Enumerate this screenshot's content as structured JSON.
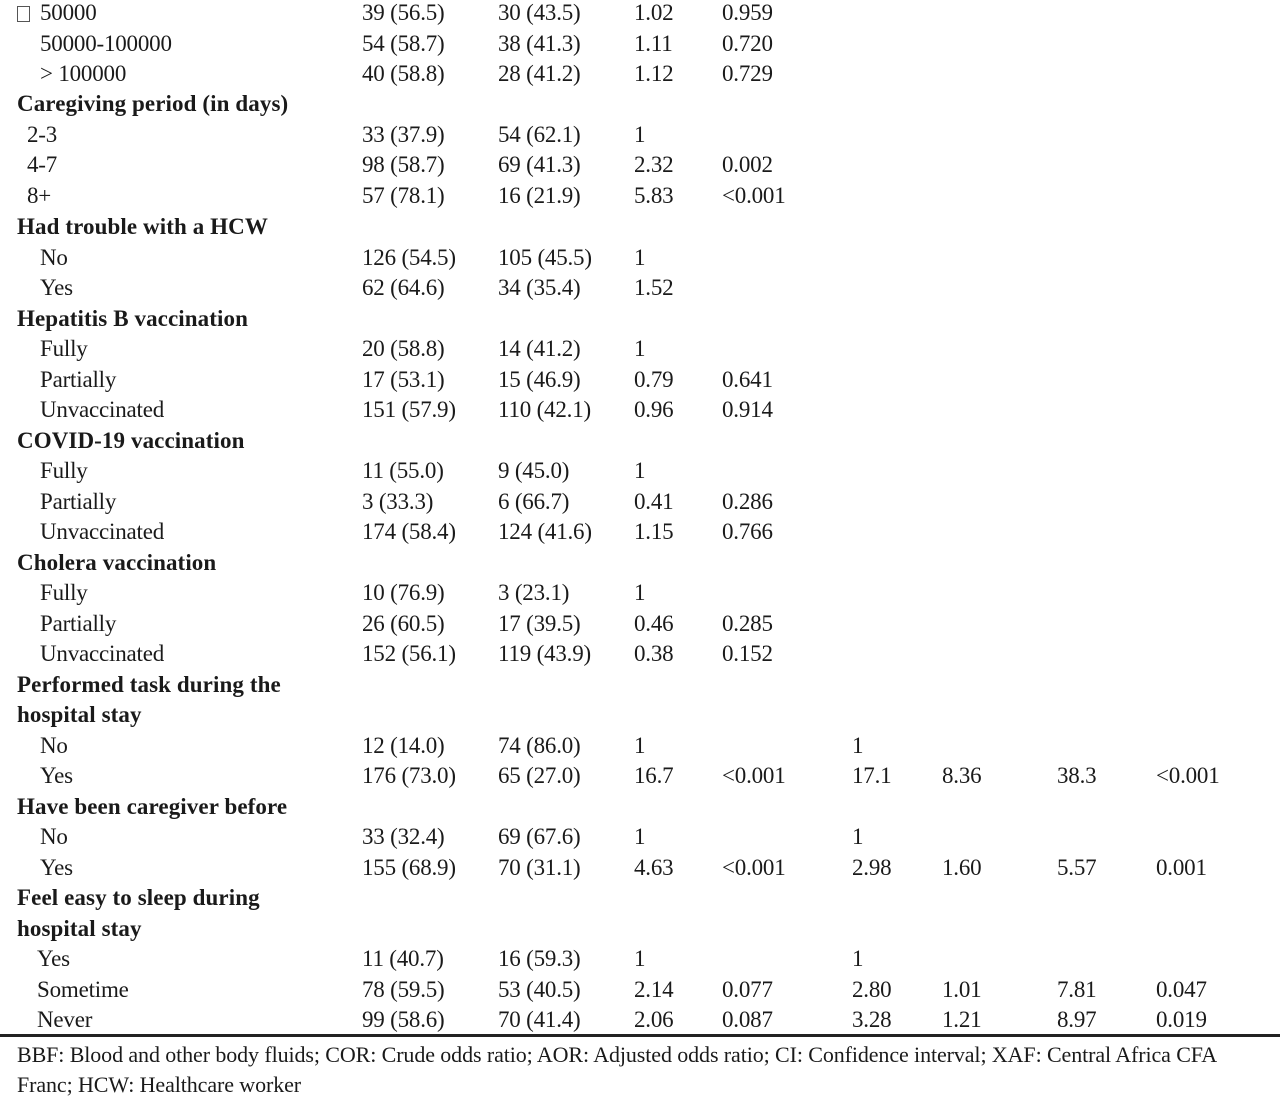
{
  "rows": [
    {
      "type": "data",
      "label": "50000",
      "glyph": "box",
      "c": [
        "39 (56.5)",
        "30 (43.5)",
        "1.02",
        "0.959",
        "",
        "",
        "",
        ""
      ]
    },
    {
      "type": "data",
      "label": "50000-100000",
      "c": [
        "54 (58.7)",
        "38 (41.3)",
        "1.11",
        "0.720",
        "",
        "",
        "",
        ""
      ]
    },
    {
      "type": "data",
      "label": "> 100000",
      "c": [
        "40 (58.8)",
        "28 (41.2)",
        "1.12",
        "0.729",
        "",
        "",
        "",
        ""
      ]
    },
    {
      "type": "header",
      "label": "Caregiving period (in days)"
    },
    {
      "type": "data",
      "label": "2-3",
      "indent": "tiny",
      "c": [
        "33 (37.9)",
        "54 (62.1)",
        "1",
        "",
        "",
        "",
        "",
        ""
      ]
    },
    {
      "type": "data",
      "label": "4-7",
      "indent": "tiny",
      "c": [
        "98 (58.7)",
        "69 (41.3)",
        "2.32",
        "0.002",
        "",
        "",
        "",
        ""
      ]
    },
    {
      "type": "data",
      "label": "8+",
      "indent": "tiny",
      "c": [
        "57 (78.1)",
        "16 (21.9)",
        "5.83",
        "<0.001",
        "",
        "",
        "",
        ""
      ]
    },
    {
      "type": "header",
      "label": "Had trouble with a HCW"
    },
    {
      "type": "data",
      "label": "No",
      "c": [
        "126 (54.5)",
        "105 (45.5)",
        "1",
        "",
        "",
        "",
        "",
        ""
      ]
    },
    {
      "type": "data",
      "label": "Yes",
      "c": [
        "62 (64.6)",
        "34 (35.4)",
        "1.52",
        "",
        "",
        "",
        "",
        ""
      ]
    },
    {
      "type": "header",
      "label": "Hepatitis B vaccination"
    },
    {
      "type": "data",
      "label": "Fully",
      "c": [
        "20 (58.8)",
        "14 (41.2)",
        "1",
        "",
        "",
        "",
        "",
        ""
      ]
    },
    {
      "type": "data",
      "label": "Partially",
      "c": [
        "17 (53.1)",
        "15 (46.9)",
        "0.79",
        "0.641",
        "",
        "",
        "",
        ""
      ]
    },
    {
      "type": "data",
      "label": "Unvaccinated",
      "c": [
        "151 (57.9)",
        "110 (42.1)",
        "0.96",
        "0.914",
        "",
        "",
        "",
        ""
      ]
    },
    {
      "type": "header",
      "label": "COVID-19 vaccination"
    },
    {
      "type": "data",
      "label": "Fully",
      "c": [
        "11 (55.0)",
        "9 (45.0)",
        "1",
        "",
        "",
        "",
        "",
        ""
      ]
    },
    {
      "type": "data",
      "label": "Partially",
      "c": [
        "3 (33.3)",
        "6 (66.7)",
        "0.41",
        "0.286",
        "",
        "",
        "",
        ""
      ]
    },
    {
      "type": "data",
      "label": "Unvaccinated",
      "c": [
        "174 (58.4)",
        "124 (41.6)",
        "1.15",
        "0.766",
        "",
        "",
        "",
        ""
      ]
    },
    {
      "type": "header",
      "label": "Cholera vaccination"
    },
    {
      "type": "data",
      "label": "Fully",
      "c": [
        "10 (76.9)",
        "3 (23.1)",
        "1",
        "",
        "",
        "",
        "",
        ""
      ]
    },
    {
      "type": "data",
      "label": "Partially",
      "c": [
        "26 (60.5)",
        "17 (39.5)",
        "0.46",
        "0.285",
        "",
        "",
        "",
        ""
      ]
    },
    {
      "type": "data",
      "label": "Unvaccinated",
      "c": [
        "152 (56.1)",
        "119 (43.9)",
        "0.38",
        "0.152",
        "",
        "",
        "",
        ""
      ]
    },
    {
      "type": "header",
      "label": "Performed task during the"
    },
    {
      "type": "header",
      "label": "hospital stay"
    },
    {
      "type": "data",
      "label": "No",
      "c": [
        "12 (14.0)",
        "74 (86.0)",
        "1",
        "",
        "1",
        "",
        "",
        ""
      ]
    },
    {
      "type": "data",
      "label": "Yes",
      "c": [
        "176 (73.0)",
        "65 (27.0)",
        "16.7",
        "<0.001",
        "17.1",
        "8.36",
        "38.3",
        "<0.001"
      ]
    },
    {
      "type": "header",
      "label": "Have been caregiver before"
    },
    {
      "type": "data",
      "label": "No",
      "c": [
        "33 (32.4)",
        "69 (67.6)",
        "1",
        "",
        "1",
        "",
        "",
        ""
      ]
    },
    {
      "type": "data",
      "label": "Yes",
      "c": [
        "155 (68.9)",
        "70 (31.1)",
        "4.63",
        "<0.001",
        "2.98",
        "1.60",
        "5.57",
        "0.001"
      ]
    },
    {
      "type": "header",
      "label": "Feel easy to sleep during"
    },
    {
      "type": "header",
      "label": "hospital stay"
    },
    {
      "type": "data",
      "label": "Yes",
      "indent": "shift",
      "c": [
        "11 (40.7)",
        "16 (59.3)",
        "1",
        "",
        "1",
        "",
        "",
        ""
      ]
    },
    {
      "type": "data",
      "label": "Sometime",
      "indent": "shift",
      "c": [
        "78 (59.5)",
        "53 (40.5)",
        "2.14",
        "0.077",
        "2.80",
        "1.01",
        "7.81",
        "0.047"
      ]
    },
    {
      "type": "data",
      "label": "Never",
      "indent": "shift",
      "c": [
        "99 (58.6)",
        "70 (41.4)",
        "2.06",
        "0.087",
        "3.28",
        "1.21",
        "8.97",
        "0.019"
      ]
    }
  ],
  "footnote": "BBF: Blood and other body fluids; COR: Crude odds ratio; AOR: Adjusted odds ratio; CI: Confidence interval; XAF: Central Africa CFA Franc; HCW: Healthcare worker"
}
